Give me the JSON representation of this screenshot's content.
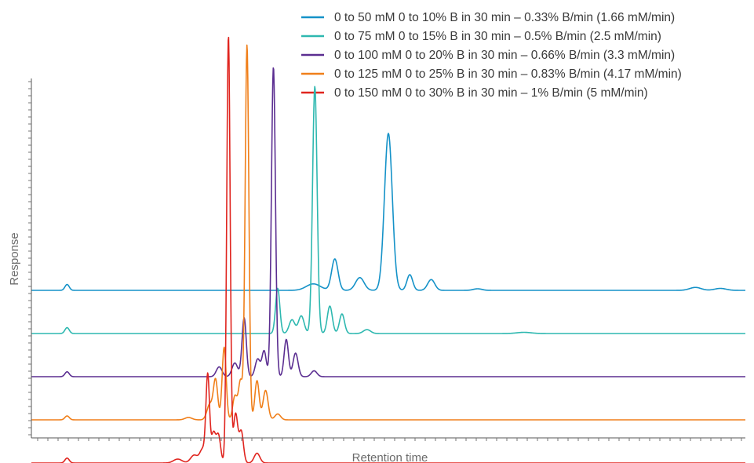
{
  "chart_data": {
    "type": "line",
    "xlabel": "Retention time",
    "ylabel": "Response",
    "grid": false,
    "legend_position": "top-right",
    "x_tick_labels": false,
    "y_tick_labels": false,
    "series": [
      {
        "name": "0 to 50 mM 0 to 10% B in 30 min – 0.33% B/min (1.66 mM/min)",
        "color": "#1592c8",
        "baseline": 0.0,
        "peaks": [
          [
            0.05,
            0.03,
            0.003
          ],
          [
            0.395,
            0.033,
            0.01
          ],
          [
            0.425,
            0.16,
            0.0045
          ],
          [
            0.46,
            0.065,
            0.006
          ],
          [
            0.5,
            0.8,
            0.0055
          ],
          [
            0.53,
            0.08,
            0.004
          ],
          [
            0.56,
            0.055,
            0.005
          ],
          [
            0.625,
            0.008,
            0.006
          ],
          [
            0.93,
            0.015,
            0.008
          ],
          [
            0.965,
            0.01,
            0.008
          ]
        ]
      },
      {
        "name": "0 to 75 mM 0 to 15% B in 30 min – 0.5% B/min (2.5 mM/min)",
        "color": "#2eb8b0",
        "baseline": -0.22,
        "peaks": [
          [
            0.05,
            0.03,
            0.003
          ],
          [
            0.345,
            0.23,
            0.003
          ],
          [
            0.365,
            0.07,
            0.004
          ],
          [
            0.378,
            0.09,
            0.004
          ],
          [
            0.397,
            1.26,
            0.0032
          ],
          [
            0.418,
            0.14,
            0.0035
          ],
          [
            0.435,
            0.1,
            0.0035
          ],
          [
            0.47,
            0.02,
            0.005
          ],
          [
            0.69,
            0.006,
            0.01
          ]
        ]
      },
      {
        "name": "0 to 100 mM 0 to 20% B in 30 min – 0.66% B/min (3.3 mM/min)",
        "color": "#5b2e91",
        "baseline": -0.44,
        "peaks": [
          [
            0.05,
            0.025,
            0.003
          ],
          [
            0.263,
            0.05,
            0.004
          ],
          [
            0.285,
            0.07,
            0.004
          ],
          [
            0.298,
            0.3,
            0.003
          ],
          [
            0.317,
            0.09,
            0.0035
          ],
          [
            0.326,
            0.13,
            0.003
          ],
          [
            0.339,
            1.58,
            0.0028
          ],
          [
            0.357,
            0.19,
            0.003
          ],
          [
            0.37,
            0.12,
            0.0035
          ],
          [
            0.396,
            0.03,
            0.004
          ]
        ]
      },
      {
        "name": "0 to 125 mM 0 to 25% B in 30 min – 0.83% B/min (4.17 mM/min)",
        "color": "#f07f1a",
        "baseline": -0.66,
        "peaks": [
          [
            0.05,
            0.02,
            0.003
          ],
          [
            0.22,
            0.012,
            0.005
          ],
          [
            0.25,
            0.08,
            0.004
          ],
          [
            0.258,
            0.2,
            0.003
          ],
          [
            0.27,
            0.37,
            0.0028
          ],
          [
            0.285,
            0.12,
            0.003
          ],
          [
            0.293,
            0.2,
            0.003
          ],
          [
            0.302,
            1.91,
            0.0026
          ],
          [
            0.316,
            0.2,
            0.003
          ],
          [
            0.328,
            0.15,
            0.0035
          ],
          [
            0.345,
            0.03,
            0.004
          ]
        ]
      },
      {
        "name": "0 to 150 mM 0 to 30% B in 30 min – 1% B/min (5 mM/min)",
        "color": "#e0251f",
        "baseline": -0.88,
        "peaks": [
          [
            0.05,
            0.025,
            0.003
          ],
          [
            0.205,
            0.02,
            0.006
          ],
          [
            0.228,
            0.04,
            0.005
          ],
          [
            0.24,
            0.07,
            0.004
          ],
          [
            0.247,
            0.44,
            0.0025
          ],
          [
            0.255,
            0.15,
            0.003
          ],
          [
            0.262,
            0.14,
            0.003
          ],
          [
            0.276,
            2.18,
            0.0024
          ],
          [
            0.286,
            0.25,
            0.003
          ],
          [
            0.294,
            0.16,
            0.003
          ],
          [
            0.316,
            0.05,
            0.004
          ]
        ]
      }
    ],
    "y_range": [
      -0.98,
      1.4
    ],
    "x_range": [
      0,
      1
    ]
  }
}
